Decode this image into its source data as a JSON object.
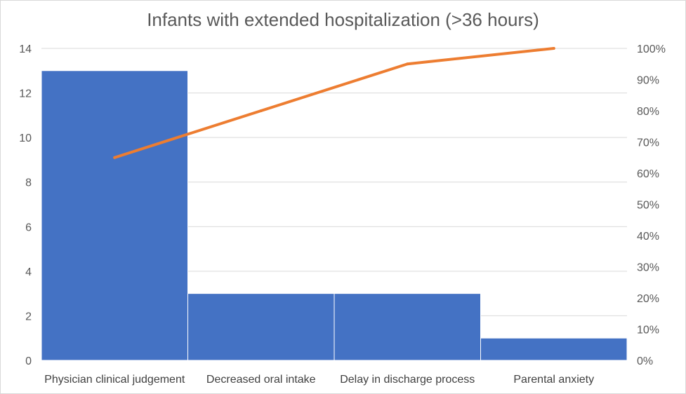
{
  "chart_data": {
    "type": "bar",
    "title": "Infants with extended hospitalization (>36 hours)",
    "xlabel": "",
    "ylabel": "",
    "categories": [
      "Physician clinical judgement",
      "Decreased oral intake",
      "Delay in discharge process",
      "Parental anxiety"
    ],
    "series": [
      {
        "type": "bar",
        "values": [
          13,
          3,
          3,
          1
        ],
        "color": "#4472C4"
      },
      {
        "type": "line",
        "axis": "right",
        "values": [
          65,
          80,
          95,
          100
        ],
        "color": "#ED7D31"
      }
    ],
    "ylim": [
      0,
      14
    ],
    "y_ticks": [
      "0",
      "2",
      "4",
      "6",
      "8",
      "10",
      "12",
      "14"
    ],
    "y2lim": [
      0,
      100
    ],
    "y2_ticks": [
      "0%",
      "10%",
      "20%",
      "30%",
      "40%",
      "50%",
      "60%",
      "70%",
      "80%",
      "90%",
      "100%"
    ],
    "grid": true,
    "legend": "none"
  }
}
